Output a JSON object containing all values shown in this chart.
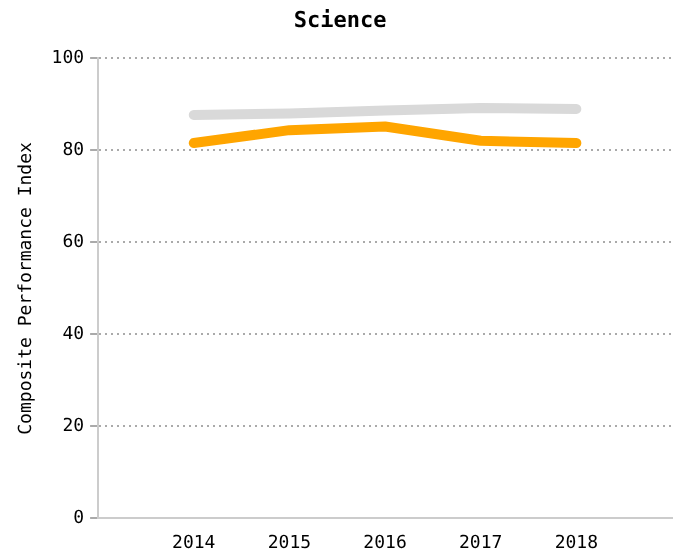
{
  "chart_data": {
    "type": "line",
    "title": "Science",
    "ylabel": "Composite Performance Index",
    "x": [
      2014,
      2015,
      2016,
      2017,
      2018
    ],
    "series": [
      {
        "color": "#d9d9d9",
        "values": [
          87.7,
          88.0,
          88.7,
          89.2,
          89.0
        ]
      },
      {
        "color": "#ffa500",
        "values": [
          81.6,
          84.4,
          85.2,
          82.1,
          81.6
        ]
      }
    ],
    "xlim": [
      2013,
      2019
    ],
    "xticks": [
      2014,
      2015,
      2016,
      2017,
      2018
    ],
    "ylim": [
      0,
      100
    ],
    "yticks": [
      0,
      20,
      40,
      60,
      80,
      100
    ],
    "grid": "y",
    "legend": false,
    "marker": "none"
  }
}
